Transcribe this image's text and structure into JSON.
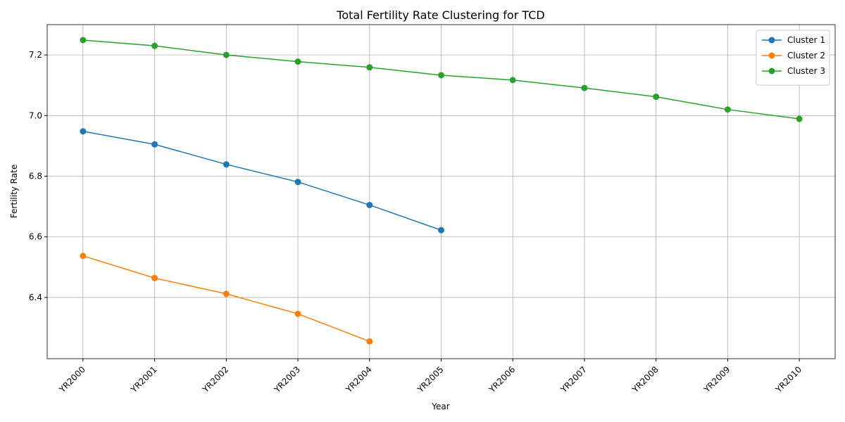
{
  "chart_data": {
    "type": "line",
    "title": "Total Fertility Rate Clustering for TCD",
    "xlabel": "Year",
    "ylabel": "Fertility Rate",
    "categories": [
      "YR2000",
      "YR2001",
      "YR2002",
      "YR2003",
      "YR2004",
      "YR2005",
      "YR2006",
      "YR2007",
      "YR2008",
      "YR2009",
      "YR2010"
    ],
    "series": [
      {
        "name": "Cluster 1",
        "color": "#1f77b4",
        "values": [
          6.948,
          6.905,
          6.839,
          6.781,
          6.705,
          6.622,
          null,
          null,
          null,
          null,
          null
        ]
      },
      {
        "name": "Cluster 2",
        "color": "#ff7f0e",
        "values": [
          6.537,
          6.464,
          6.412,
          6.346,
          6.255,
          null,
          null,
          null,
          null,
          null,
          null
        ]
      },
      {
        "name": "Cluster 3",
        "color": "#2ca02c",
        "values": [
          7.249,
          7.23,
          7.2,
          7.178,
          7.159,
          7.133,
          7.117,
          7.091,
          7.062,
          7.02,
          6.989
        ]
      }
    ],
    "ylim": [
      6.198,
      7.3
    ],
    "yticks": [
      6.4,
      6.6,
      6.8,
      {
        "value": 7,
        "label": "7.0"
      },
      7.2
    ],
    "grid": true,
    "legend": "upper right"
  }
}
